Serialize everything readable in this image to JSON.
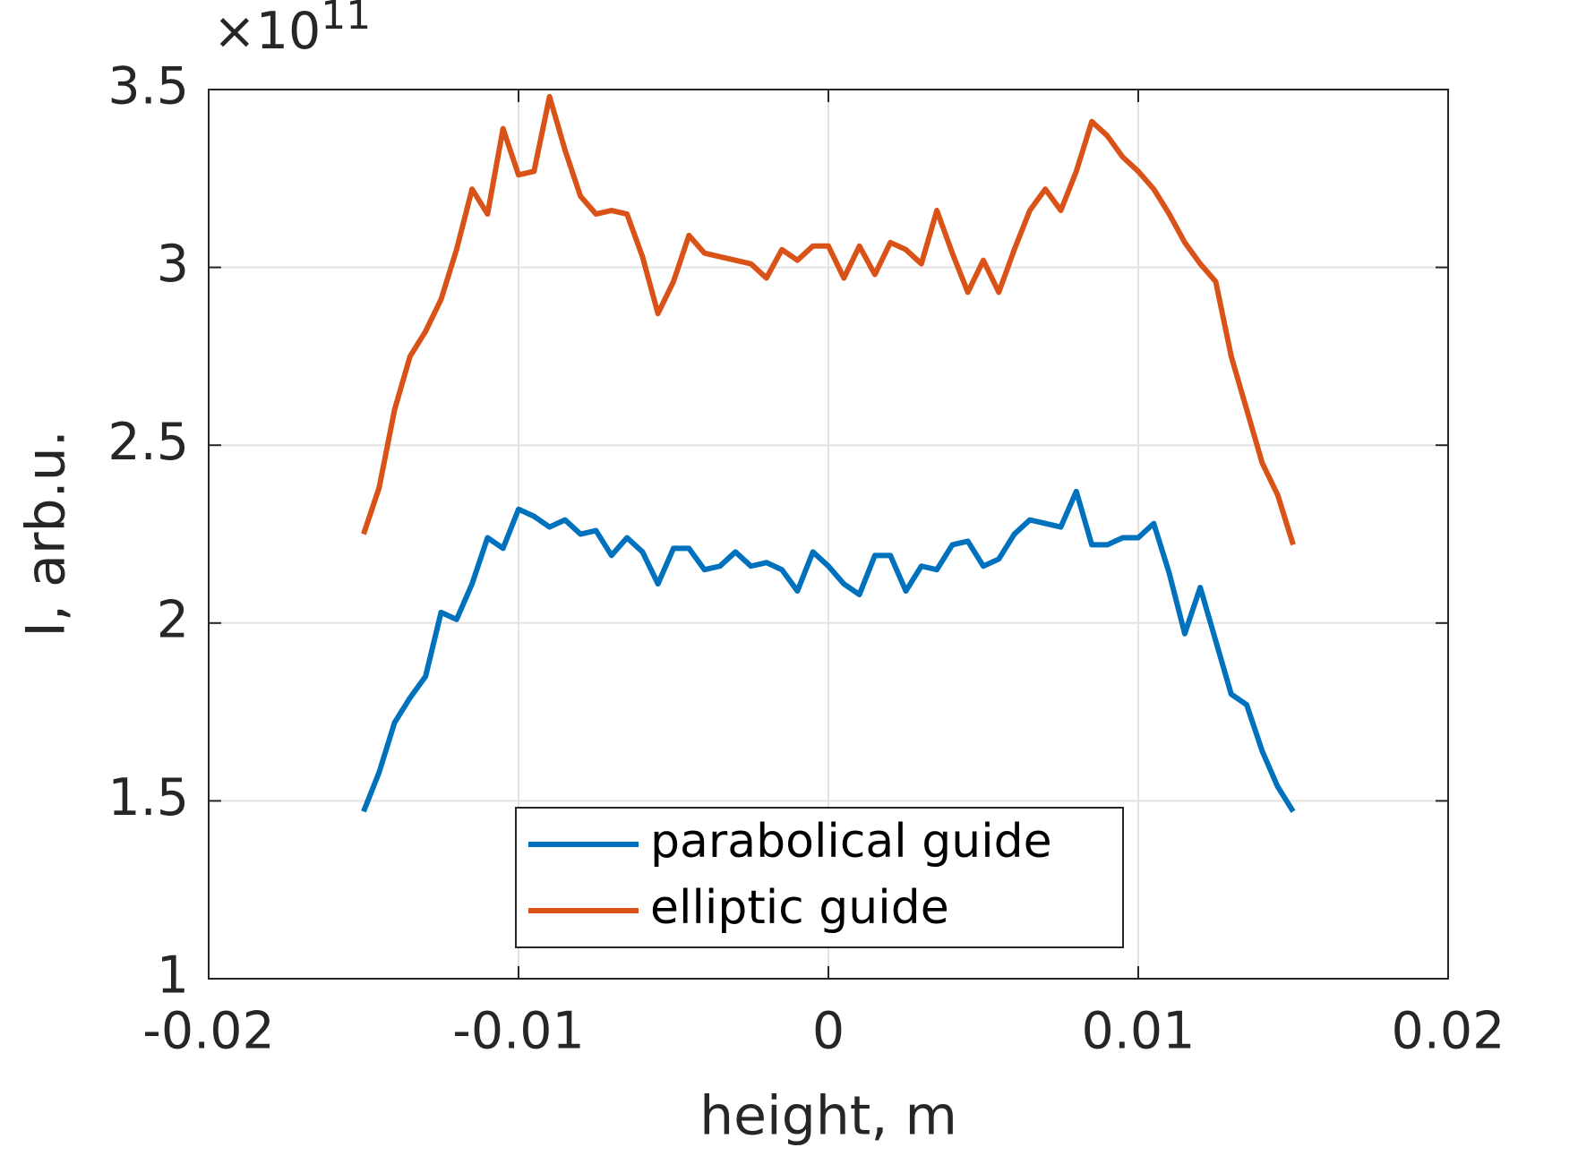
{
  "chart_data": {
    "type": "line",
    "xlabel": "height, m",
    "ylabel": "I, arb.u.",
    "y_scale_base": "×10",
    "y_scale_exponent": "11",
    "xlim": [
      -0.02,
      0.02
    ],
    "xticks": [
      -0.02,
      -0.01,
      0,
      0.01,
      0.02
    ],
    "ylim": [
      1,
      3.5
    ],
    "yticks": [
      1,
      1.5,
      2,
      2.5,
      3,
      3.5
    ],
    "grid": true,
    "legend_position": "south",
    "x": [
      -0.015,
      -0.0145,
      -0.014,
      -0.0135,
      -0.013,
      -0.0125,
      -0.012,
      -0.0115,
      -0.011,
      -0.0105,
      -0.01,
      -0.0095,
      -0.009,
      -0.0085,
      -0.008,
      -0.0075,
      -0.007,
      -0.0065,
      -0.006,
      -0.0055,
      -0.005,
      -0.0045,
      -0.004,
      -0.0035,
      -0.003,
      -0.0025,
      -0.002,
      -0.0015,
      -0.001,
      -0.0005,
      0,
      0.0005,
      0.001,
      0.0015,
      0.002,
      0.0025,
      0.003,
      0.0035,
      0.004,
      0.0045,
      0.005,
      0.0055,
      0.006,
      0.0065,
      0.007,
      0.0075,
      0.008,
      0.0085,
      0.009,
      0.0095,
      0.01,
      0.0105,
      0.011,
      0.0115,
      0.012,
      0.0125,
      0.013,
      0.0135,
      0.014,
      0.0145,
      0.015
    ],
    "series": [
      {
        "name": "parabolical guide",
        "color": "#0072BD",
        "values": [
          1.47,
          1.58,
          1.72,
          1.79,
          1.85,
          2.03,
          2.01,
          2.11,
          2.24,
          2.21,
          2.32,
          2.3,
          2.27,
          2.29,
          2.25,
          2.26,
          2.19,
          2.24,
          2.2,
          2.11,
          2.21,
          2.21,
          2.15,
          2.16,
          2.2,
          2.16,
          2.17,
          2.15,
          2.09,
          2.2,
          2.16,
          2.11,
          2.08,
          2.19,
          2.19,
          2.09,
          2.16,
          2.15,
          2.22,
          2.23,
          2.16,
          2.18,
          2.25,
          2.29,
          2.28,
          2.27,
          2.37,
          2.22,
          2.22,
          2.24,
          2.24,
          2.28,
          2.14,
          1.97,
          2.1,
          1.95,
          1.8,
          1.77,
          1.64,
          1.54,
          1.47
        ]
      },
      {
        "name": "elliptic guide",
        "color": "#D95319",
        "values": [
          2.25,
          2.38,
          2.6,
          2.75,
          2.82,
          2.91,
          3.05,
          3.22,
          3.15,
          3.39,
          3.26,
          3.27,
          3.48,
          3.33,
          3.2,
          3.15,
          3.16,
          3.15,
          3.03,
          2.87,
          2.96,
          3.09,
          3.04,
          3.03,
          3.02,
          3.01,
          2.97,
          3.05,
          3.02,
          3.06,
          3.06,
          2.97,
          3.06,
          2.98,
          3.07,
          3.05,
          3.01,
          3.16,
          3.04,
          2.93,
          3.02,
          2.93,
          3.05,
          3.16,
          3.22,
          3.16,
          3.27,
          3.41,
          3.37,
          3.31,
          3.27,
          3.22,
          3.15,
          3.07,
          3.01,
          2.96,
          2.75,
          2.6,
          2.45,
          2.36,
          2.22
        ]
      }
    ]
  }
}
